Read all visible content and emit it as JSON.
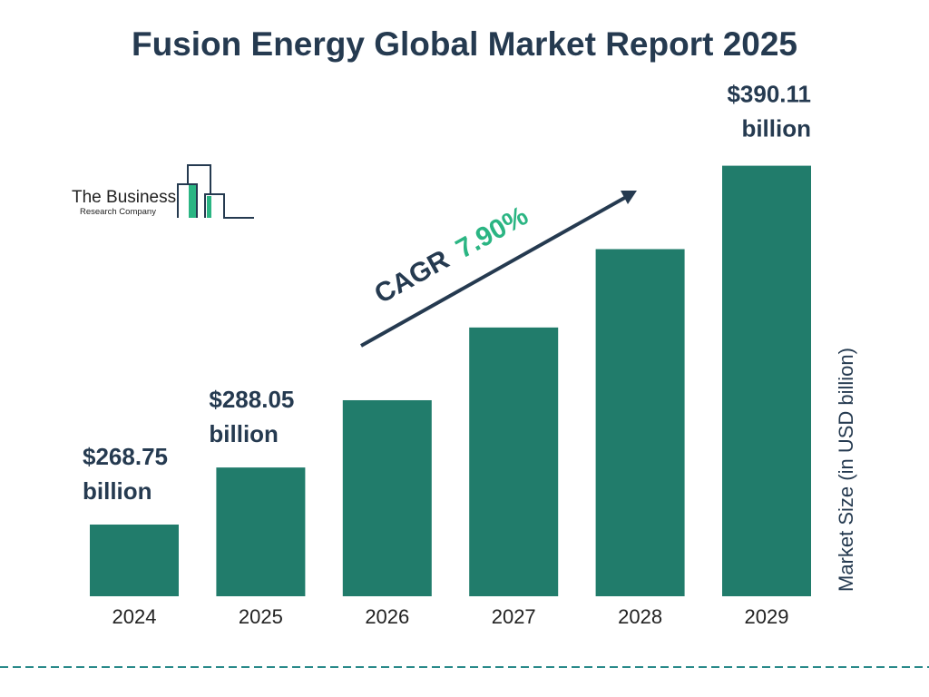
{
  "chart_data": {
    "type": "bar",
    "title": "Fusion Energy Global Market Report 2025",
    "categories": [
      "2024",
      "2025",
      "2026",
      "2027",
      "2028",
      "2029"
    ],
    "values": [
      268.75,
      288.05,
      310.8,
      335.4,
      361.9,
      390.11
    ],
    "data_labels": [
      {
        "index": 0,
        "line1": "$268.75",
        "line2": "billion"
      },
      {
        "index": 1,
        "line1": "$288.05",
        "line2": "billion"
      },
      {
        "index": 5,
        "line1": "$390.11",
        "line2": "billion"
      }
    ],
    "xlabel": "",
    "ylabel": "Market Size (in USD billion)",
    "annotation": {
      "prefix": "CAGR ",
      "value": "7.90%"
    },
    "grid": false,
    "colors": {
      "bar": "#217c6b",
      "text": "#253a50",
      "cagr": "#2bb583",
      "dash": "#2a8a8a"
    }
  },
  "logo": {
    "line1": "The Business",
    "line2": "Research Company"
  }
}
